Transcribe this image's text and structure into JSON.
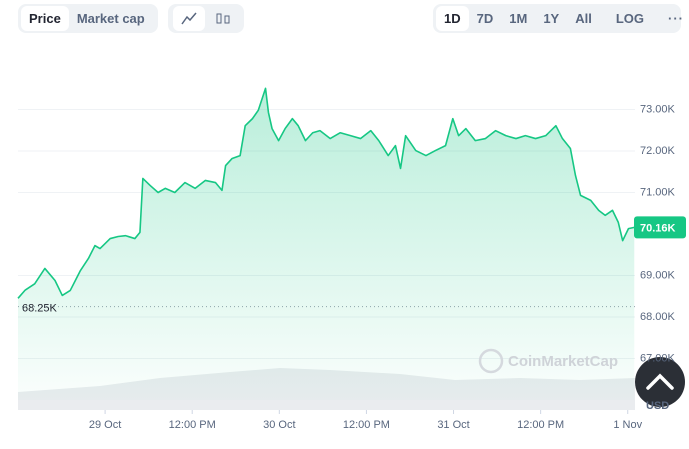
{
  "toolbar": {
    "metric": [
      "Price",
      "Market cap"
    ],
    "range": [
      "1D",
      "7D",
      "1M",
      "1Y",
      "All"
    ],
    "log": "LOG"
  },
  "watermark": "CoinMarketCap",
  "chart_data": {
    "type": "line",
    "color": "#16c784",
    "currency": "USD",
    "x": [
      0,
      1,
      2.3,
      3.7,
      5.1,
      6.1,
      7.2,
      7.9,
      8.6,
      9.7,
      10.6,
      11.3,
      12.7,
      13.8,
      14.8,
      16.1,
      16.8,
      17.2,
      18.2,
      19.3,
      20.3,
      21.6,
      23,
      24.4,
      25.8,
      27.2,
      28.1,
      28.6,
      29.5,
      30.6,
      31.3,
      32.3,
      33.1,
      34.1,
      34.5,
      35,
      35.9,
      36.8,
      37.8,
      38.6,
      39.6,
      40.6,
      41.6,
      43,
      44.4,
      45.8,
      47.2,
      48.6,
      49.7,
      51,
      52,
      52.7,
      53.4,
      54.8,
      56.2,
      57.5,
      58.9,
      59.9,
      60.7,
      61.7,
      63,
      64.4,
      65.8,
      67.2,
      68.6,
      69.9,
      71.3,
      72.7,
      74.1,
      75,
      76.1,
      76.8,
      77.5,
      78.9,
      80,
      80.9,
      81.9,
      82.7,
      83.3,
      84.1,
      84.9
    ],
    "values": [
      68450,
      68650,
      68800,
      69170,
      68880,
      68520,
      68640,
      68880,
      69120,
      69410,
      69720,
      69650,
      69890,
      69940,
      69960,
      69890,
      70040,
      71340,
      71170,
      71000,
      71100,
      71000,
      71240,
      71100,
      71290,
      71240,
      71050,
      71650,
      71820,
      71890,
      72610,
      72780,
      72980,
      73510,
      72930,
      72540,
      72250,
      72540,
      72780,
      72610,
      72250,
      72440,
      72490,
      72300,
      72440,
      72370,
      72300,
      72490,
      72250,
      71890,
      72130,
      71580,
      72370,
      72010,
      71890,
      72010,
      72130,
      72780,
      72370,
      72540,
      72250,
      72300,
      72490,
      72370,
      72300,
      72370,
      72300,
      72370,
      72610,
      72300,
      72060,
      71410,
      70930,
      70810,
      70570,
      70450,
      70570,
      70280,
      69840,
      70130,
      70160
    ],
    "xlim": [
      0,
      85
    ],
    "ylim": [
      66000,
      74000
    ],
    "xticks": [
      {
        "value": 12,
        "label": "29 Oct"
      },
      {
        "value": 24,
        "label": "12:00 PM"
      },
      {
        "value": 36,
        "label": "30 Oct"
      },
      {
        "value": 48,
        "label": "12:00 PM"
      },
      {
        "value": 60,
        "label": "31 Oct"
      },
      {
        "value": 72,
        "label": "12:00 PM"
      },
      {
        "value": 84,
        "label": "1 Nov"
      }
    ],
    "yticks": [
      {
        "value": 67000,
        "label": "67.00K"
      },
      {
        "value": 68000,
        "label": "68.00K"
      },
      {
        "value": 69000,
        "label": "69.00K"
      },
      {
        "value": 71000,
        "label": "71.00K"
      },
      {
        "value": 72000,
        "label": "72.00K"
      },
      {
        "value": 73000,
        "label": "73.00K"
      }
    ],
    "grid": true,
    "reference_line": {
      "value": 68250,
      "label": "68.25K"
    },
    "current_price": {
      "value": 70160,
      "label": "70.16K"
    }
  }
}
